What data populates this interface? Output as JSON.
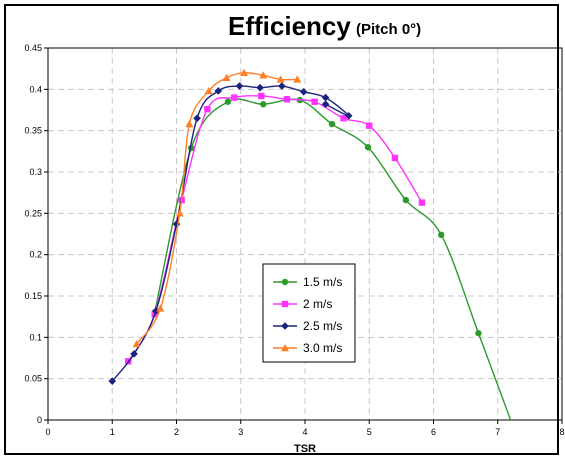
{
  "chart_data": {
    "type": "line",
    "title": "Efficiency",
    "subtitle": "(Pitch 0°)",
    "xlabel": "TSR",
    "ylabel": "",
    "xlim": [
      0,
      8
    ],
    "ylim": [
      0,
      0.45
    ],
    "x_ticks": [
      "0",
      "1",
      "2",
      "3",
      "4",
      "5",
      "6",
      "7",
      "8"
    ],
    "y_ticks": [
      "0",
      "0.05",
      "0.1",
      "0.15",
      "0.2",
      "0.25",
      "0.3",
      "0.35",
      "0.4",
      "0.45"
    ],
    "grid": true,
    "legend_position": "center",
    "series": [
      {
        "name": "1.5 m/s",
        "color": "#2e9a2e",
        "marker": "circle",
        "points": [
          [
            1.66,
            0.13
          ],
          [
            2.23,
            0.329
          ],
          [
            2.8,
            0.385
          ],
          [
            3.35,
            0.382
          ],
          [
            3.92,
            0.387
          ],
          [
            4.42,
            0.358
          ],
          [
            4.98,
            0.33
          ],
          [
            5.57,
            0.266
          ],
          [
            6.12,
            0.224
          ],
          [
            6.7,
            0.105
          ],
          [
            7.2,
            0.0
          ]
        ]
      },
      {
        "name": "2 m/s",
        "color": "#ff33ff",
        "marker": "square",
        "points": [
          [
            1.25,
            0.071
          ],
          [
            1.66,
            0.128
          ],
          [
            2.08,
            0.266
          ],
          [
            2.48,
            0.376
          ],
          [
            2.9,
            0.39
          ],
          [
            3.32,
            0.392
          ],
          [
            3.72,
            0.388
          ],
          [
            4.15,
            0.385
          ],
          [
            4.6,
            0.365
          ],
          [
            5.0,
            0.356
          ],
          [
            5.4,
            0.317
          ],
          [
            5.82,
            0.263
          ]
        ]
      },
      {
        "name": "2.5 m/s",
        "color": "#1a237e",
        "marker": "diamond",
        "points": [
          [
            1.0,
            0.047
          ],
          [
            1.34,
            0.08
          ],
          [
            1.68,
            0.132
          ],
          [
            2.0,
            0.237
          ],
          [
            2.32,
            0.365
          ],
          [
            2.65,
            0.398
          ],
          [
            2.98,
            0.404
          ],
          [
            3.3,
            0.402
          ],
          [
            3.64,
            0.404
          ],
          [
            3.98,
            0.397
          ],
          [
            4.32,
            0.39
          ],
          [
            4.68,
            0.368
          ],
          [
            4.32,
            0.382
          ]
        ]
      },
      {
        "name": "3.0 m/s",
        "color": "#ff7f27",
        "marker": "triangle",
        "points": [
          [
            1.38,
            0.092
          ],
          [
            1.75,
            0.135
          ],
          [
            2.05,
            0.25
          ],
          [
            2.2,
            0.358
          ],
          [
            2.5,
            0.398
          ],
          [
            2.78,
            0.414
          ],
          [
            3.05,
            0.42
          ],
          [
            3.35,
            0.417
          ],
          [
            3.62,
            0.412
          ],
          [
            3.88,
            0.412
          ]
        ]
      }
    ]
  }
}
